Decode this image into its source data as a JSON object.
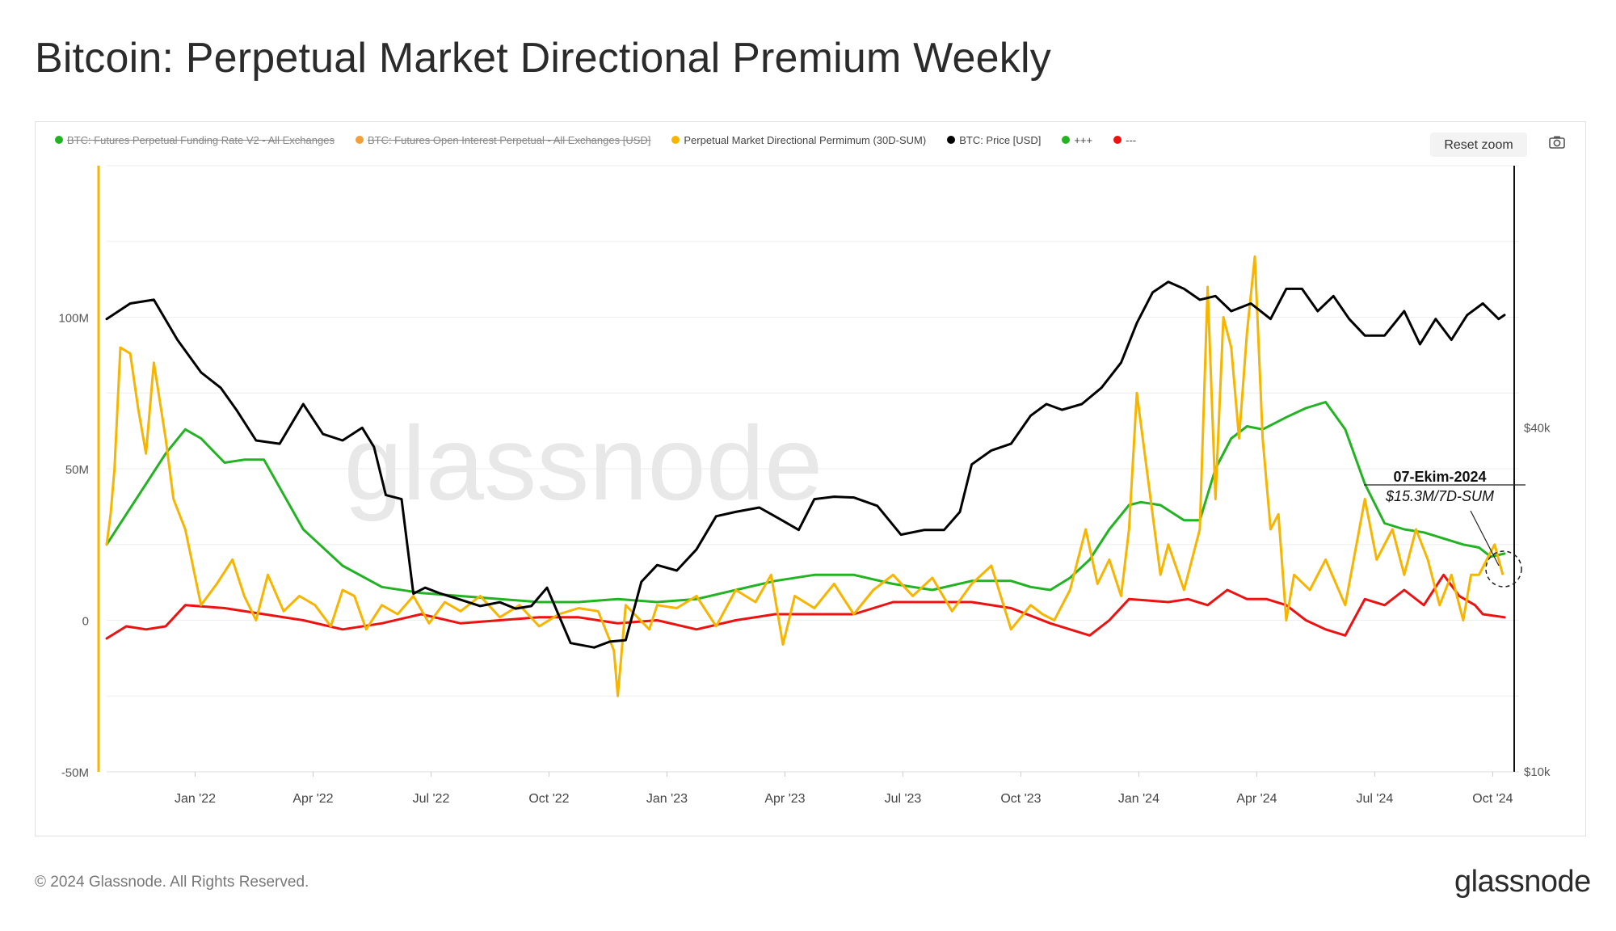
{
  "page": {
    "title": "Bitcoin: Perpetual Market Directional Premium Weekly",
    "copyright": "© 2024 Glassnode. All Rights Reserved.",
    "brand": "glassnode",
    "watermark": "glassnode"
  },
  "toolbar": {
    "reset_zoom_label": "Reset zoom",
    "camera_icon": "camera-icon"
  },
  "legend": [
    {
      "label": "BTC: Futures Perpetual Funding Rate V2 - All Exchanges",
      "color": "#22b322",
      "hidden": true
    },
    {
      "label": "BTC: Futures Open Interest Perpetual - All Exchanges [USD]",
      "color": "#f2a03a",
      "hidden": true
    },
    {
      "label": "Perpetual Market Directional Permimum (30D-SUM)",
      "color": "#f7b500",
      "hidden": false
    },
    {
      "label": "BTC: Price [USD]",
      "color": "#000000",
      "hidden": false
    },
    {
      "label": "+++",
      "color": "#22b322",
      "hidden": false
    },
    {
      "label": "---",
      "color": "#ee1111",
      "hidden": false
    }
  ],
  "annotation": {
    "date": "07-Ekim-2024",
    "value": "$15.3M/7D-SUM"
  },
  "chart_data": {
    "type": "line",
    "title": "Bitcoin: Perpetual Market Directional Premium Weekly",
    "x_range": [
      "2021-10-25",
      "2024-10-11"
    ],
    "x_tick_labels": [
      "Jan '22",
      "Apr '22",
      "Jul '22",
      "Oct '22",
      "Jan '23",
      "Apr '23",
      "Jul '23",
      "Oct '23",
      "Jan '24",
      "Apr '24",
      "Jul '24",
      "Oct '24"
    ],
    "x_tick_months": [
      2.25,
      5.25,
      8.25,
      11.25,
      14.25,
      17.25,
      20.25,
      23.25,
      26.25,
      29.25,
      32.25,
      35.25
    ],
    "x_unit": "months since 2021-10-25",
    "y_left": {
      "min": -50,
      "max": 150,
      "unit": "USD millions",
      "ticks": [
        100,
        50,
        0,
        -50
      ],
      "tick_labels": [
        "100M",
        "50M",
        "0",
        "-50M"
      ]
    },
    "y_right": {
      "min": 10000,
      "max": 115000,
      "scale": "log",
      "unit": "USD",
      "ticks": [
        40000,
        10000
      ],
      "tick_labels": [
        "$40k",
        "$10k"
      ]
    },
    "grid": true,
    "series": [
      {
        "name": "BTC: Price [USD]",
        "axis": "right",
        "color": "#000000",
        "x": [
          0,
          0.6,
          1.2,
          1.8,
          2.4,
          2.9,
          3.3,
          3.8,
          4.4,
          5.0,
          5.5,
          6.0,
          6.5,
          6.8,
          7.1,
          7.5,
          7.8,
          8.1,
          8.5,
          9.0,
          9.5,
          10.0,
          10.4,
          10.8,
          11.2,
          11.8,
          12.4,
          12.8,
          13.2,
          13.6,
          14.0,
          14.5,
          15.0,
          15.5,
          16.0,
          16.6,
          17.2,
          17.6,
          18.0,
          18.5,
          19.0,
          19.6,
          20.2,
          20.8,
          21.3,
          21.7,
          22.0,
          22.5,
          23.0,
          23.5,
          23.9,
          24.3,
          24.8,
          25.3,
          25.8,
          26.2,
          26.6,
          27.0,
          27.4,
          27.8,
          28.2,
          28.6,
          29.1,
          29.6,
          30.0,
          30.4,
          30.8,
          31.2,
          31.6,
          32.0,
          32.5,
          33.0,
          33.4,
          33.8,
          34.2,
          34.6,
          35.0,
          35.4,
          35.55
        ],
        "y": [
          62000,
          66000,
          67000,
          57000,
          50000,
          47000,
          43000,
          38000,
          37500,
          44000,
          39000,
          38000,
          40000,
          37000,
          30500,
          30000,
          20500,
          21000,
          20500,
          20000,
          19500,
          19800,
          19300,
          19500,
          21000,
          16800,
          16500,
          16900,
          17000,
          21500,
          23000,
          22500,
          24500,
          28000,
          28500,
          29000,
          27500,
          26500,
          30000,
          30300,
          30200,
          29200,
          26000,
          26500,
          26500,
          28500,
          34500,
          36500,
          37500,
          42000,
          44000,
          43000,
          44000,
          47000,
          52000,
          61000,
          69000,
          72000,
          70000,
          67000,
          68000,
          64000,
          66000,
          62000,
          70000,
          70000,
          64000,
          68000,
          62000,
          58000,
          58000,
          64000,
          56000,
          62000,
          57000,
          63000,
          66000,
          62000,
          63000
        ]
      },
      {
        "name": "Perpetual Market Directional Permimum (30D-SUM)",
        "axis": "left",
        "color": "#f7b500",
        "x": [
          0,
          0.1,
          0.2,
          0.35,
          0.6,
          0.8,
          1.0,
          1.2,
          1.5,
          1.7,
          2.0,
          2.4,
          2.8,
          3.2,
          3.5,
          3.8,
          4.1,
          4.5,
          4.9,
          5.3,
          5.7,
          6.0,
          6.3,
          6.6,
          7.0,
          7.4,
          7.8,
          8.2,
          8.6,
          9.0,
          9.5,
          10.0,
          10.5,
          11.0,
          11.5,
          12.0,
          12.5,
          12.9,
          13.0,
          13.2,
          13.5,
          13.8,
          14.0,
          14.5,
          15.0,
          15.5,
          16.0,
          16.5,
          16.9,
          17.2,
          17.5,
          18.0,
          18.5,
          19.0,
          19.5,
          20.0,
          20.5,
          21.0,
          21.5,
          22.0,
          22.5,
          23.0,
          23.5,
          23.8,
          24.1,
          24.5,
          24.9,
          25.2,
          25.5,
          25.8,
          26.0,
          26.2,
          26.5,
          26.8,
          27.0,
          27.4,
          27.8,
          28.0,
          28.2,
          28.4,
          28.6,
          28.8,
          29.0,
          29.2,
          29.4,
          29.6,
          29.8,
          30.0,
          30.2,
          30.6,
          31.0,
          31.5,
          32.0,
          32.3,
          32.7,
          33.0,
          33.3,
          33.6,
          33.9,
          34.2,
          34.5,
          34.7,
          34.9,
          35.1,
          35.3,
          35.5
        ],
        "y": [
          25,
          35,
          50,
          90,
          88,
          70,
          55,
          85,
          60,
          40,
          30,
          5,
          12,
          20,
          8,
          0,
          15,
          3,
          8,
          5,
          -2,
          10,
          8,
          -3,
          5,
          2,
          8,
          -1,
          6,
          3,
          8,
          1,
          5,
          -2,
          2,
          4,
          3,
          -10,
          -25,
          5,
          1,
          -3,
          5,
          4,
          8,
          -2,
          10,
          6,
          15,
          -8,
          8,
          4,
          12,
          2,
          10,
          15,
          8,
          14,
          3,
          12,
          18,
          -3,
          5,
          2,
          0,
          10,
          30,
          12,
          20,
          8,
          30,
          75,
          45,
          15,
          25,
          10,
          30,
          110,
          40,
          100,
          90,
          60,
          95,
          120,
          60,
          30,
          35,
          0,
          15,
          10,
          20,
          5,
          40,
          20,
          30,
          15,
          30,
          20,
          5,
          15,
          0,
          15,
          15,
          20,
          25,
          15.3
        ]
      },
      {
        "name": "+++",
        "axis": "left",
        "color": "#22b322",
        "x": [
          0,
          0.5,
          1.0,
          1.5,
          2.0,
          2.4,
          3.0,
          3.5,
          4.0,
          5.0,
          6.0,
          7.0,
          8.0,
          9.0,
          10.0,
          11.0,
          12.0,
          13.0,
          14.0,
          15.0,
          16.0,
          17.0,
          18.0,
          19.0,
          20.0,
          21.0,
          22.0,
          23.0,
          23.5,
          24.0,
          24.5,
          25.0,
          25.5,
          26.0,
          26.3,
          26.8,
          27.4,
          27.8,
          28.2,
          28.6,
          29.0,
          29.4,
          30.0,
          30.5,
          31.0,
          31.5,
          32.0,
          32.5,
          33.0,
          33.5,
          34.0,
          34.5,
          34.9,
          35.2,
          35.55
        ],
        "y": [
          25,
          35,
          45,
          55,
          63,
          60,
          52,
          53,
          53,
          30,
          18,
          11,
          9,
          8,
          7,
          6,
          6,
          7,
          6,
          7,
          10,
          13,
          15,
          15,
          12,
          10,
          13,
          13,
          11,
          10,
          14,
          20,
          30,
          38,
          39,
          38,
          33,
          33,
          50,
          60,
          64,
          63,
          67,
          70,
          72,
          63,
          45,
          32,
          30,
          29,
          27,
          25,
          24,
          21,
          22
        ]
      },
      {
        "name": "---",
        "axis": "left",
        "color": "#ee1111",
        "x": [
          0,
          0.5,
          1.0,
          1.5,
          2.0,
          3.0,
          4.0,
          5.0,
          6.0,
          7.0,
          8.0,
          9.0,
          10.0,
          11.0,
          12.0,
          13.0,
          14.0,
          15.0,
          16.0,
          17.0,
          18.0,
          19.0,
          20.0,
          21.0,
          22.0,
          23.0,
          24.0,
          25.0,
          25.5,
          26.0,
          27.0,
          27.5,
          28.0,
          28.5,
          29.0,
          29.5,
          30.0,
          30.5,
          31.0,
          31.5,
          32.0,
          32.5,
          33.0,
          33.5,
          34.0,
          34.4,
          34.8,
          35.0,
          35.55
        ],
        "y": [
          -6,
          -2,
          -3,
          -2,
          5,
          4,
          2,
          0,
          -3,
          -1,
          2,
          -1,
          0,
          1,
          1,
          -1,
          0,
          -3,
          0,
          2,
          2,
          2,
          6,
          6,
          6,
          4,
          -1,
          -5,
          0,
          7,
          6,
          7,
          5,
          10,
          7,
          7,
          5,
          0,
          -3,
          -5,
          7,
          5,
          10,
          5,
          15,
          8,
          5,
          2,
          1
        ]
      }
    ]
  }
}
